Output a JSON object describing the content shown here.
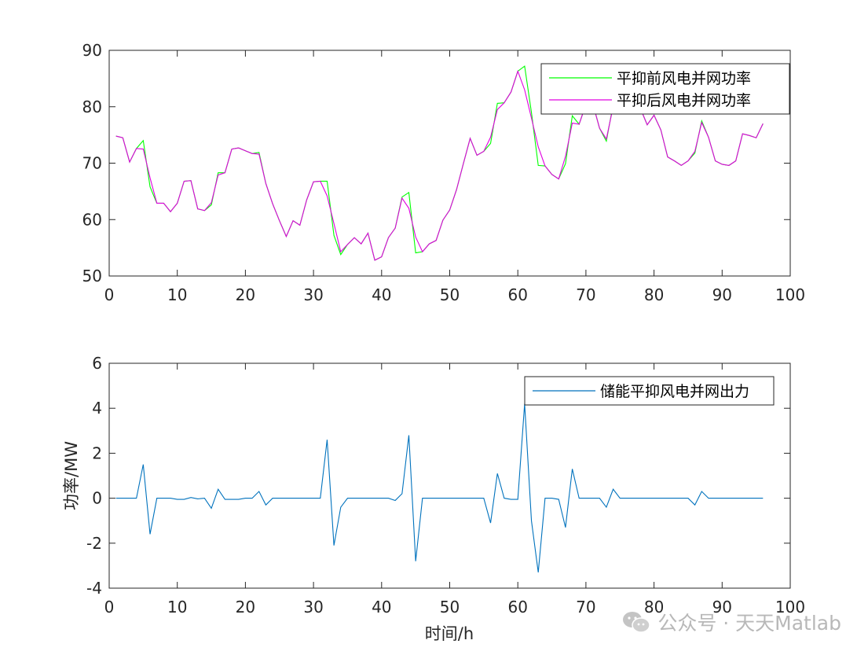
{
  "chart_data": [
    {
      "type": "line",
      "xlim": [
        0,
        100
      ],
      "ylim": [
        50,
        90
      ],
      "xticks": [
        0,
        10,
        20,
        30,
        40,
        50,
        60,
        70,
        80,
        90,
        100
      ],
      "yticks": [
        50,
        60,
        70,
        80,
        90
      ],
      "xlabel": "",
      "ylabel": "",
      "grid": false,
      "legend_position": "top-right",
      "x": [
        1,
        2,
        3,
        4,
        5,
        6,
        7,
        8,
        9,
        10,
        11,
        12,
        13,
        14,
        15,
        16,
        17,
        18,
        19,
        20,
        21,
        22,
        23,
        24,
        25,
        26,
        27,
        28,
        29,
        30,
        31,
        32,
        33,
        34,
        35,
        36,
        37,
        38,
        39,
        40,
        41,
        42,
        43,
        44,
        45,
        46,
        47,
        48,
        49,
        50,
        51,
        52,
        53,
        54,
        55,
        56,
        57,
        58,
        59,
        60,
        61,
        62,
        63,
        64,
        65,
        66,
        67,
        68,
        69,
        70,
        71,
        72,
        73,
        74,
        75,
        76,
        77,
        78,
        79,
        80,
        81,
        82,
        83,
        84,
        85,
        86,
        87,
        88,
        89,
        90,
        91,
        92,
        93,
        94,
        95,
        96
      ],
      "series": [
        {
          "name": "平抑前风电并网功率",
          "color": "#00ff00",
          "values": [
            74.8,
            74.5,
            70.2,
            72.6,
            74.0,
            65.8,
            62.9,
            62.9,
            61.4,
            62.9,
            66.8,
            66.9,
            61.9,
            61.6,
            62.6,
            68.3,
            68.3,
            72.5,
            72.7,
            72.2,
            71.7,
            71.9,
            66.4,
            62.8,
            59.8,
            57.0,
            59.8,
            59.0,
            63.5,
            66.7,
            66.8,
            66.8,
            57.2,
            53.8,
            55.6,
            56.8,
            55.7,
            57.6,
            52.8,
            53.4,
            56.8,
            58.5,
            64.0,
            64.8,
            54.1,
            54.3,
            55.7,
            56.3,
            59.9,
            61.7,
            65.3,
            69.9,
            74.4,
            71.4,
            72.1,
            73.5,
            80.6,
            80.7,
            82.6,
            86.3,
            87.2,
            79.0,
            69.6,
            69.5,
            68.0,
            67.2,
            69.9,
            78.4,
            76.9,
            80.4,
            80.6,
            76.2,
            73.9,
            80.4,
            80.4,
            80.8,
            82.2,
            79.7,
            76.8,
            78.5,
            75.9,
            71.1,
            70.4,
            69.6,
            70.4,
            71.8,
            77.5,
            74.6,
            70.4,
            69.8,
            69.6,
            70.4,
            75.2,
            74.9,
            74.5,
            77.0
          ]
        },
        {
          "name": "平抑后风电并网功率",
          "color": "#e000e0",
          "values": [
            74.8,
            74.5,
            70.2,
            72.6,
            72.5,
            67.4,
            62.9,
            62.9,
            61.4,
            62.9,
            66.8,
            66.9,
            61.9,
            61.6,
            63.0,
            67.9,
            68.3,
            72.5,
            72.7,
            72.2,
            71.7,
            71.6,
            66.4,
            62.8,
            59.8,
            57.0,
            59.8,
            59.0,
            63.5,
            66.7,
            66.8,
            64.2,
            59.3,
            54.3,
            55.6,
            56.8,
            55.7,
            57.6,
            52.8,
            53.4,
            56.8,
            58.5,
            63.8,
            62.0,
            56.9,
            54.3,
            55.7,
            56.3,
            59.9,
            61.7,
            65.3,
            69.9,
            74.4,
            71.4,
            72.1,
            74.6,
            79.5,
            80.7,
            82.6,
            86.3,
            83.0,
            78.0,
            72.9,
            69.5,
            68.0,
            67.2,
            71.2,
            77.1,
            76.9,
            80.4,
            80.6,
            76.2,
            74.3,
            80.0,
            80.4,
            80.8,
            82.2,
            79.7,
            76.8,
            78.5,
            75.9,
            71.1,
            70.4,
            69.6,
            70.4,
            72.1,
            77.2,
            74.6,
            70.4,
            69.8,
            69.6,
            70.4,
            75.2,
            74.9,
            74.5,
            77.0
          ]
        }
      ]
    },
    {
      "type": "line",
      "xlim": [
        0,
        100
      ],
      "ylim": [
        -4,
        6
      ],
      "xticks": [
        0,
        10,
        20,
        30,
        40,
        50,
        60,
        70,
        80,
        90,
        100
      ],
      "yticks": [
        -4,
        -2,
        0,
        2,
        4,
        6
      ],
      "xlabel": "时间/h",
      "ylabel": "功率/MW",
      "grid": false,
      "legend_position": "top-right",
      "x": [
        1,
        2,
        3,
        4,
        5,
        6,
        7,
        8,
        9,
        10,
        11,
        12,
        13,
        14,
        15,
        16,
        17,
        18,
        19,
        20,
        21,
        22,
        23,
        24,
        25,
        26,
        27,
        28,
        29,
        30,
        31,
        32,
        33,
        34,
        35,
        36,
        37,
        38,
        39,
        40,
        41,
        42,
        43,
        44,
        45,
        46,
        47,
        48,
        49,
        50,
        51,
        52,
        53,
        54,
        55,
        56,
        57,
        58,
        59,
        60,
        61,
        62,
        63,
        64,
        65,
        66,
        67,
        68,
        69,
        70,
        71,
        72,
        73,
        74,
        75,
        76,
        77,
        78,
        79,
        80,
        81,
        82,
        83,
        84,
        85,
        86,
        87,
        88,
        89,
        90,
        91,
        92,
        93,
        94,
        95,
        96
      ],
      "series": [
        {
          "name": "储能平抑风电并网出力",
          "color": "#0072bd",
          "values": [
            0,
            0,
            0,
            0,
            1.5,
            -1.6,
            0,
            0,
            0,
            -0.05,
            -0.05,
            0.03,
            -0.03,
            0,
            -0.45,
            0.4,
            -0.05,
            -0.05,
            -0.05,
            0,
            0,
            0.3,
            -0.3,
            0,
            0,
            0,
            0,
            0,
            0,
            0,
            0,
            2.6,
            -2.1,
            -0.4,
            0,
            0,
            0,
            0,
            0,
            0,
            0,
            -0.1,
            0.2,
            2.8,
            -2.8,
            0,
            0,
            0,
            0,
            0,
            0,
            0,
            0,
            0,
            0,
            -1.1,
            1.1,
            0,
            -0.05,
            -0.05,
            4.2,
            -1.0,
            -3.3,
            0,
            0,
            -0.05,
            -1.3,
            1.3,
            0,
            0,
            0,
            0,
            -0.4,
            0.4,
            0,
            0,
            0,
            0,
            0,
            0,
            0,
            0,
            0,
            0,
            0,
            -0.3,
            0.3,
            0,
            0,
            0,
            0,
            0,
            0,
            0,
            0,
            0
          ]
        }
      ]
    }
  ],
  "watermark": {
    "text": "公众号 · 天天Matlab"
  }
}
